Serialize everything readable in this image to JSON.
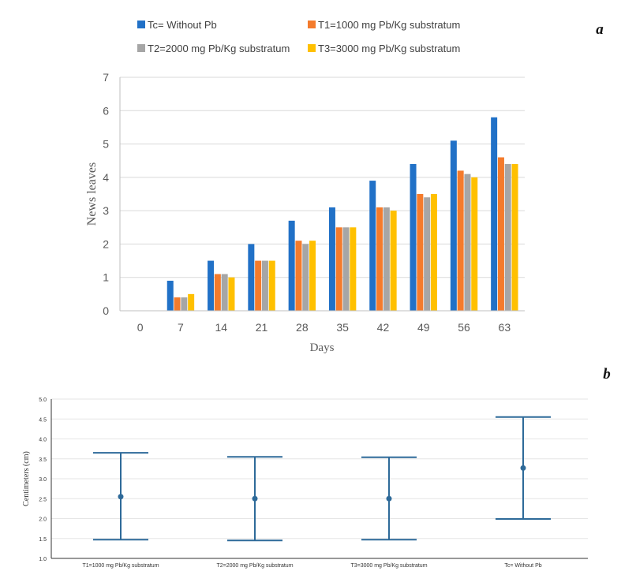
{
  "chart_data": [
    {
      "type": "bar",
      "panel_label": "a",
      "xlabel": "Days",
      "ylabel": "News leaves",
      "ylim": [
        0,
        7
      ],
      "yticks": [
        "0",
        "1",
        "2",
        "3",
        "4",
        "5",
        "6",
        "7"
      ],
      "categories": [
        "0",
        "7",
        "14",
        "21",
        "28",
        "35",
        "42",
        "49",
        "56",
        "63"
      ],
      "series": [
        {
          "name": "Tc= Without Pb",
          "color": "#2171c7",
          "values": [
            0,
            0.9,
            1.5,
            2.0,
            2.7,
            3.1,
            3.9,
            4.4,
            5.1,
            5.8
          ]
        },
        {
          "name": "T1=1000 mg Pb/Kg substratum",
          "color": "#f47b2c",
          "values": [
            0,
            0.4,
            1.1,
            1.5,
            2.1,
            2.5,
            3.1,
            3.5,
            4.2,
            4.6
          ]
        },
        {
          "name": "T2=2000 mg Pb/Kg substratum",
          "color": "#a6a6a6",
          "values": [
            0,
            0.4,
            1.1,
            1.5,
            2.0,
            2.5,
            3.1,
            3.4,
            4.1,
            4.4
          ]
        },
        {
          "name": "T3=3000 mg Pb/Kg substratum",
          "color": "#ffc000",
          "values": [
            0,
            0.5,
            1.0,
            1.5,
            2.1,
            2.5,
            3.0,
            3.5,
            4.0,
            4.4
          ]
        }
      ]
    },
    {
      "type": "errorbar",
      "panel_label": "b",
      "ylabel": "Centimeters (cm)",
      "ylim": [
        1.0,
        5.0
      ],
      "yticks": [
        "1.0",
        "1.5",
        "2.0",
        "2.5",
        "3.0",
        "3.5",
        "4.0",
        "4.5",
        "5.0"
      ],
      "color": "#2e6a99",
      "categories": [
        "T1=1000 mg Pb/Kg substratum",
        "T2=2000 mg Pb/Kg substratum",
        "T3=3000 mg Pb/Kg substratum",
        "Tc= Without Pb"
      ],
      "mean": [
        2.55,
        2.5,
        2.5,
        3.27
      ],
      "lower": [
        1.47,
        1.45,
        1.47,
        1.99
      ],
      "upper": [
        3.65,
        3.55,
        3.54,
        4.55
      ]
    }
  ]
}
